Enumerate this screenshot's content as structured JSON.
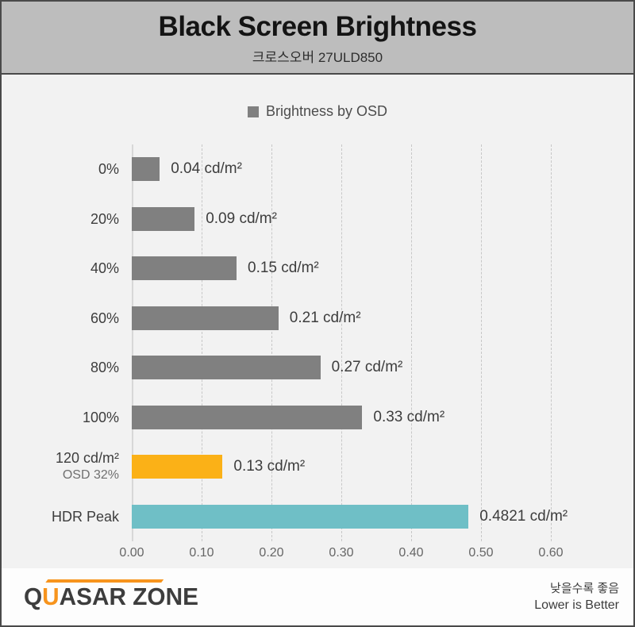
{
  "header": {
    "title": "Black Screen Brightness",
    "subtitle": "크로스오버 27ULD850"
  },
  "legend": {
    "label": "Brightness by OSD",
    "swatch_color": "#808080"
  },
  "chart_data": {
    "type": "bar",
    "orientation": "horizontal",
    "title": "Black Screen Brightness",
    "subtitle": "크로스오버 27ULD850",
    "legend_entries": [
      "Brightness by OSD"
    ],
    "categories": [
      "0%",
      "20%",
      "40%",
      "60%",
      "80%",
      "100%",
      "120 cd/m²\nOSD 32%",
      "HDR Peak"
    ],
    "values": [
      0.04,
      0.09,
      0.15,
      0.21,
      0.27,
      0.33,
      0.13,
      0.4821
    ],
    "value_labels": [
      "0.04 cd/m²",
      "0.09 cd/m²",
      "0.15 cd/m²",
      "0.21 cd/m²",
      "0.27 cd/m²",
      "0.33 cd/m²",
      "0.13 cd/m²",
      "0.4821 cd/m²"
    ],
    "bar_colors": [
      "#808080",
      "#808080",
      "#808080",
      "#808080",
      "#808080",
      "#808080",
      "#fbb117",
      "#6fbfc6"
    ],
    "xlabel": "",
    "ylabel": "",
    "xlim": [
      0.0,
      0.6
    ],
    "xticks": [
      "0.00",
      "0.10",
      "0.20",
      "0.30",
      "0.40",
      "0.50",
      "0.60"
    ],
    "grid": "vertical-dashed",
    "legend_position": "top-center",
    "units": "cd/m²"
  },
  "footer": {
    "logo_q": "Q",
    "logo_u": "U",
    "logo_rest": "ASAR ZONE",
    "note_ko": "낮을수록 좋음",
    "note_en": "Lower is Better",
    "logo_accent_color": "#f7941d"
  }
}
